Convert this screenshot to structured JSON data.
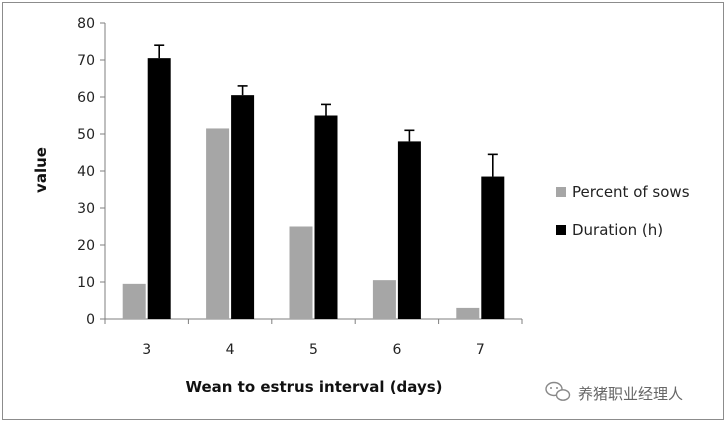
{
  "chart_data": {
    "type": "bar",
    "title": "",
    "xlabel": "Wean to estrus interval (days)",
    "ylabel": "value",
    "ylim": [
      0,
      80
    ],
    "yticks": [
      0,
      10,
      20,
      30,
      40,
      50,
      60,
      70,
      80
    ],
    "categories": [
      "3",
      "4",
      "5",
      "6",
      "7"
    ],
    "series": [
      {
        "name": "Percent of sows",
        "color": "#a6a6a6",
        "values": [
          9.5,
          51.5,
          25,
          10.5,
          3
        ],
        "errors": null
      },
      {
        "name": "Duration (h)",
        "color": "#000000",
        "values": [
          70.5,
          60.5,
          55,
          48,
          38.5
        ],
        "errors": [
          3.5,
          2.5,
          3,
          3,
          6
        ]
      }
    ],
    "legend_position": "right",
    "grid": false
  },
  "watermark": {
    "text": "养猪职业经理人",
    "icon": "wechat-icon"
  }
}
